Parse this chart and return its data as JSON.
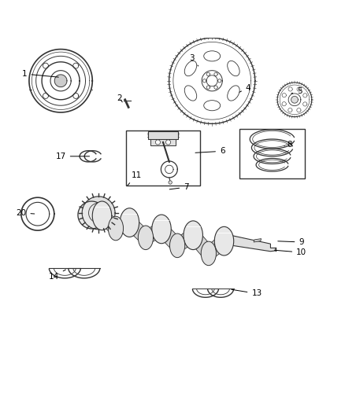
{
  "background_color": "#ffffff",
  "dark": "#333333",
  "label_data": [
    [
      1,
      0.07,
      0.895,
      0.175,
      0.885
    ],
    [
      2,
      0.345,
      0.825,
      0.358,
      0.808
    ],
    [
      3,
      0.555,
      0.942,
      0.575,
      0.918
    ],
    [
      4,
      0.72,
      0.855,
      0.695,
      0.842
    ],
    [
      5,
      0.87,
      0.845,
      0.845,
      0.838
    ],
    [
      6,
      0.645,
      0.67,
      0.56,
      0.665
    ],
    [
      7,
      0.54,
      0.565,
      0.485,
      0.558
    ],
    [
      8,
      0.84,
      0.69,
      0.825,
      0.685
    ],
    [
      9,
      0.875,
      0.405,
      0.8,
      0.408
    ],
    [
      10,
      0.875,
      0.375,
      0.79,
      0.382
    ],
    [
      11,
      0.395,
      0.6,
      0.365,
      0.565
    ],
    [
      13,
      0.745,
      0.255,
      0.665,
      0.268
    ],
    [
      14,
      0.155,
      0.305,
      0.195,
      0.328
    ],
    [
      17,
      0.175,
      0.655,
      0.265,
      0.655
    ],
    [
      20,
      0.06,
      0.49,
      0.105,
      0.487
    ]
  ]
}
